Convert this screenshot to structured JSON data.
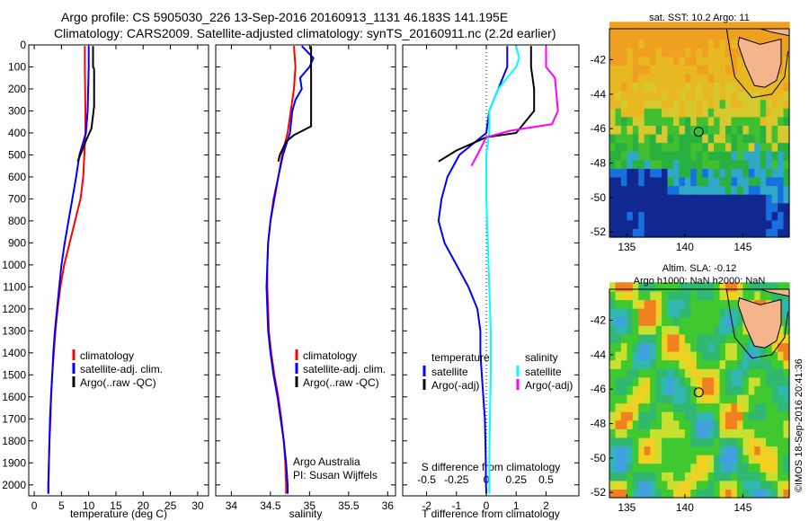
{
  "header": {
    "line1": "Argo profile: CS 5905030_226 13-Sep-2016 20160913_1131 46.183S 141.195E",
    "line2": "Climatology: CARS2009. Satellite-adjusted climatology: synTS_20160911.nc (2.2d earlier)"
  },
  "stamp": "©IMOS 18-Sep-2016 20:41:36",
  "colors": {
    "climatology": "#ff0000",
    "satellite": "#0000ff",
    "argo": "#000000",
    "salinity_sat": "#00ffff",
    "salinity_argo": "#ff00ff",
    "land": "#f4b48c"
  },
  "chart_data": [
    {
      "type": "line",
      "panel": "temperature",
      "xlabel": "temperature (deg C)",
      "xlim": [
        -1,
        32
      ],
      "xticks": [
        0,
        5,
        10,
        15,
        20,
        25,
        30
      ],
      "ylim": [
        0,
        2050
      ],
      "yticks": [
        0,
        100,
        200,
        300,
        400,
        500,
        600,
        700,
        800,
        900,
        1000,
        1100,
        1200,
        1300,
        1400,
        1500,
        1600,
        1700,
        1800,
        1900,
        2000
      ],
      "legend": [
        "climatology",
        "satellite-adj. clim.",
        "Argo(..raw -QC)"
      ],
      "series": [
        {
          "name": "climatology",
          "color_key": "climatology",
          "points": [
            [
              9.3,
              5
            ],
            [
              9.3,
              100
            ],
            [
              9.4,
              300
            ],
            [
              9.4,
              400
            ],
            [
              9.2,
              500
            ],
            [
              9.0,
              600
            ],
            [
              8.5,
              700
            ],
            [
              7.5,
              800
            ],
            [
              6.5,
              900
            ],
            [
              5.5,
              1000
            ],
            [
              4.8,
              1100
            ],
            [
              4.3,
              1200
            ],
            [
              3.9,
              1300
            ],
            [
              3.6,
              1400
            ],
            [
              3.3,
              1500
            ],
            [
              3.1,
              1600
            ],
            [
              3.0,
              1700
            ],
            [
              2.8,
              1800
            ],
            [
              2.7,
              1900
            ],
            [
              2.6,
              2000
            ],
            [
              2.6,
              2040
            ]
          ]
        },
        {
          "name": "satellite-adj. clim.",
          "color_key": "satellite",
          "points": [
            [
              10.0,
              5
            ],
            [
              10.0,
              100
            ],
            [
              9.8,
              300
            ],
            [
              9.5,
              400
            ],
            [
              8.3,
              500
            ],
            [
              7.7,
              600
            ],
            [
              7.0,
              700
            ],
            [
              6.3,
              800
            ],
            [
              5.6,
              900
            ],
            [
              5.0,
              1000
            ],
            [
              4.6,
              1100
            ],
            [
              4.2,
              1200
            ],
            [
              3.8,
              1300
            ],
            [
              3.5,
              1400
            ],
            [
              3.3,
              1500
            ],
            [
              3.1,
              1600
            ],
            [
              2.9,
              1700
            ],
            [
              2.8,
              1800
            ],
            [
              2.7,
              1900
            ],
            [
              2.6,
              2000
            ],
            [
              2.6,
              2040
            ]
          ]
        },
        {
          "name": "Argo(..raw -QC)",
          "color_key": "argo",
          "points": [
            [
              10.8,
              5
            ],
            [
              10.8,
              100
            ],
            [
              11.0,
              110
            ],
            [
              11.0,
              280
            ],
            [
              10.5,
              380
            ],
            [
              9.6,
              430
            ],
            [
              8.0,
              530
            ]
          ]
        }
      ]
    },
    {
      "type": "line",
      "panel": "salinity",
      "xlabel": "salinity",
      "xlim": [
        33.8,
        36.1
      ],
      "xticks": [
        34,
        34.5,
        35,
        35.5,
        36
      ],
      "ylim": [
        0,
        2050
      ],
      "legend": [
        "climatology",
        "satellite-adj. clim.",
        "Argo(..raw -QC)"
      ],
      "annotation": [
        "Argo Australia",
        "PI: Susan Wijffels"
      ],
      "series": [
        {
          "name": "climatology",
          "color_key": "climatology",
          "points": [
            [
              34.8,
              5
            ],
            [
              34.82,
              100
            ],
            [
              34.8,
              200
            ],
            [
              34.76,
              300
            ],
            [
              34.72,
              400
            ],
            [
              34.65,
              500
            ],
            [
              34.6,
              600
            ],
            [
              34.54,
              700
            ],
            [
              34.5,
              800
            ],
            [
              34.47,
              900
            ],
            [
              34.46,
              1000
            ],
            [
              34.46,
              1100
            ],
            [
              34.47,
              1200
            ],
            [
              34.48,
              1300
            ],
            [
              34.51,
              1400
            ],
            [
              34.55,
              1500
            ],
            [
              34.6,
              1600
            ],
            [
              34.64,
              1700
            ],
            [
              34.67,
              1800
            ],
            [
              34.69,
              1900
            ],
            [
              34.7,
              2000
            ],
            [
              34.7,
              2040
            ]
          ]
        },
        {
          "name": "satellite-adj. clim.",
          "color_key": "satellite",
          "points": [
            [
              34.9,
              5
            ],
            [
              35.05,
              60
            ],
            [
              35.0,
              100
            ],
            [
              34.88,
              150
            ],
            [
              34.9,
              200
            ],
            [
              34.82,
              250
            ],
            [
              34.78,
              300
            ],
            [
              34.75,
              400
            ],
            [
              34.66,
              500
            ],
            [
              34.6,
              600
            ],
            [
              34.55,
              700
            ],
            [
              34.5,
              800
            ],
            [
              34.47,
              900
            ],
            [
              34.46,
              1000
            ],
            [
              34.45,
              1100
            ],
            [
              34.46,
              1200
            ],
            [
              34.47,
              1300
            ],
            [
              34.5,
              1400
            ],
            [
              34.54,
              1500
            ],
            [
              34.59,
              1600
            ],
            [
              34.63,
              1700
            ],
            [
              34.67,
              1800
            ],
            [
              34.7,
              1900
            ],
            [
              34.72,
              2000
            ],
            [
              34.72,
              2040
            ]
          ]
        },
        {
          "name": "Argo(..raw -QC)",
          "color_key": "argo",
          "points": [
            [
              35.02,
              5
            ],
            [
              35.02,
              370
            ],
            [
              34.8,
              410
            ],
            [
              34.7,
              440
            ],
            [
              34.62,
              500
            ],
            [
              34.6,
              530
            ]
          ]
        }
      ]
    },
    {
      "type": "line",
      "panel": "differences",
      "xlabel": "T difference from climatology",
      "xlabel_top": "S difference from climatology",
      "xlim": [
        -2.8,
        3.1
      ],
      "xticks": [
        -2,
        -1,
        0,
        1,
        2
      ],
      "xticks_s": [
        "-0.5",
        "-0.25",
        "0",
        "0.25",
        "0.5"
      ],
      "ylim": [
        0,
        2050
      ],
      "legend_headers": [
        "temperature",
        "salinity"
      ],
      "legend": [
        "satellite",
        "Argo(-adj)",
        "satellite",
        "Argo(-adj)"
      ],
      "series": [
        {
          "name": "temperature satellite",
          "color_key": "satellite",
          "points": [
            [
              0.7,
              5
            ],
            [
              0.7,
              100
            ],
            [
              0.4,
              200
            ],
            [
              0.1,
              300
            ],
            [
              0.0,
              400
            ],
            [
              -0.9,
              500
            ],
            [
              -1.3,
              600
            ],
            [
              -1.5,
              700
            ],
            [
              -1.6,
              800
            ],
            [
              -1.4,
              900
            ],
            [
              -1.0,
              1000
            ],
            [
              -0.6,
              1100
            ],
            [
              -0.3,
              1200
            ],
            [
              -0.2,
              1300
            ],
            [
              -0.2,
              1400
            ],
            [
              -0.15,
              1500
            ],
            [
              -0.1,
              1600
            ],
            [
              -0.05,
              1700
            ],
            [
              -0.03,
              1800
            ],
            [
              -0.02,
              1900
            ],
            [
              -0.01,
              2000
            ],
            [
              0.0,
              2040
            ]
          ]
        },
        {
          "name": "temperature Argo(-adj)",
          "color_key": "argo",
          "points": [
            [
              1.5,
              5
            ],
            [
              1.5,
              100
            ],
            [
              1.6,
              200
            ],
            [
              1.6,
              300
            ],
            [
              1.0,
              400
            ],
            [
              0.0,
              420
            ],
            [
              -1.0,
              480
            ],
            [
              -1.6,
              530
            ]
          ]
        },
        {
          "name": "salinity satellite",
          "color_key": "salinity_sat",
          "points": [
            [
              1.0,
              5
            ],
            [
              1.1,
              60
            ],
            [
              1.0,
              100
            ],
            [
              0.4,
              200
            ],
            [
              0.1,
              300
            ],
            [
              0.1,
              400
            ],
            [
              0.0,
              500
            ],
            [
              0.0,
              700
            ],
            [
              0.05,
              900
            ],
            [
              0.1,
              1100
            ],
            [
              0.15,
              1300
            ],
            [
              0.15,
              1500
            ],
            [
              0.12,
              1700
            ],
            [
              0.1,
              1900
            ],
            [
              0.1,
              2040
            ]
          ]
        },
        {
          "name": "salinity Argo(-adj)",
          "color_key": "salinity_argo",
          "points": [
            [
              2.0,
              5
            ],
            [
              2.0,
              100
            ],
            [
              2.3,
              150
            ],
            [
              2.4,
              300
            ],
            [
              2.2,
              360
            ],
            [
              0.8,
              390
            ],
            [
              0.0,
              420
            ],
            [
              -0.3,
              500
            ],
            [
              -0.5,
              550
            ]
          ]
        }
      ]
    },
    {
      "type": "heatmap",
      "panel": "map-sst",
      "title": "sat. SST: 10.2 Argo: 11",
      "xlim": [
        133.5,
        149
      ],
      "ylim": [
        -52.3,
        -40.2
      ],
      "xticks": [
        135,
        140,
        145
      ],
      "yticks": [
        -42,
        -44,
        -46,
        -48,
        -50,
        -52
      ],
      "argo_position": [
        141.195,
        -46.183
      ]
    },
    {
      "type": "heatmap",
      "panel": "map-sla",
      "title_lines": [
        "Altim. SLA: -0.12",
        "Argo h1000: NaN h2000: NaN"
      ],
      "xlim": [
        133.5,
        149
      ],
      "ylim": [
        -52.3,
        -40.2
      ],
      "xticks": [
        135,
        140,
        145
      ],
      "yticks": [
        -42,
        -44,
        -46,
        -48,
        -50,
        -52
      ],
      "argo_position": [
        141.195,
        -46.183
      ]
    }
  ]
}
